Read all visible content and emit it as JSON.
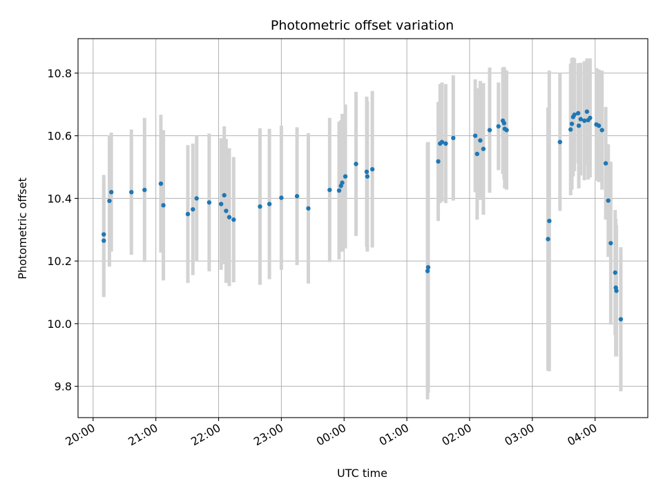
{
  "chart_data": {
    "type": "scatter",
    "title": "Photometric offset variation",
    "xlabel": "UTC time",
    "ylabel": "Photometric offset",
    "x_unit": "UTC time (hours after 20:00)",
    "xlim": [
      -0.24,
      8.84
    ],
    "ylim": [
      9.7,
      10.91
    ],
    "x_ticks": [
      {
        "value": 0,
        "label": "20:00"
      },
      {
        "value": 1,
        "label": "21:00"
      },
      {
        "value": 2,
        "label": "22:00"
      },
      {
        "value": 3,
        "label": "23:00"
      },
      {
        "value": 4,
        "label": "00:00"
      },
      {
        "value": 5,
        "label": "01:00"
      },
      {
        "value": 6,
        "label": "02:00"
      },
      {
        "value": 7,
        "label": "03:00"
      },
      {
        "value": 8,
        "label": "04:00"
      }
    ],
    "y_ticks": [
      {
        "value": 9.8,
        "label": "9.8"
      },
      {
        "value": 10.0,
        "label": "10.0"
      },
      {
        "value": 10.2,
        "label": "10.2"
      },
      {
        "value": 10.4,
        "label": "10.4"
      },
      {
        "value": 10.6,
        "label": "10.6"
      },
      {
        "value": 10.8,
        "label": "10.8"
      }
    ],
    "grid": true,
    "colors": {
      "point": "#1f77b4",
      "errorbar": "#d3d3d3",
      "grid": "#b0b0b0"
    },
    "series": [
      {
        "x": [
          0.17,
          0.17,
          0.26,
          0.29,
          0.61,
          0.82,
          1.08,
          1.12,
          1.51,
          1.59,
          1.65,
          1.85,
          2.04,
          2.09,
          2.12,
          2.17,
          2.24,
          2.66,
          2.81,
          3.0,
          3.25,
          3.43,
          3.77,
          3.92,
          3.95,
          3.97,
          4.02,
          4.19,
          4.36,
          4.37,
          4.45,
          5.33,
          5.34,
          5.5,
          5.53,
          5.56,
          5.62,
          5.74,
          6.09,
          6.12,
          6.17,
          6.22,
          6.32,
          6.46,
          6.53,
          6.55,
          6.56,
          6.59,
          7.25,
          7.27,
          7.44,
          7.61,
          7.63,
          7.65,
          7.67,
          7.73,
          7.74,
          7.77,
          7.83,
          7.87,
          7.89,
          7.92,
          8.02,
          8.06,
          8.11,
          8.17,
          8.21,
          8.25,
          8.32,
          8.33,
          8.34,
          8.41
        ],
        "y": [
          10.265,
          10.285,
          10.392,
          10.42,
          10.42,
          10.427,
          10.447,
          10.378,
          10.35,
          10.365,
          10.4,
          10.387,
          10.382,
          10.41,
          10.36,
          10.34,
          10.332,
          10.374,
          10.382,
          10.402,
          10.407,
          10.368,
          10.427,
          10.425,
          10.44,
          10.45,
          10.47,
          10.51,
          10.485,
          10.47,
          10.493,
          10.168,
          10.18,
          10.518,
          10.575,
          10.58,
          10.575,
          10.593,
          10.6,
          10.542,
          10.585,
          10.558,
          10.618,
          10.63,
          10.648,
          10.64,
          10.622,
          10.618,
          10.27,
          10.328,
          10.58,
          10.62,
          10.638,
          10.66,
          10.667,
          10.672,
          10.632,
          10.653,
          10.648,
          10.677,
          10.65,
          10.657,
          10.636,
          10.632,
          10.618,
          10.512,
          10.393,
          10.257,
          10.163,
          10.115,
          10.105,
          10.014
        ],
        "err": [
          0.18,
          0.19,
          0.21,
          0.19,
          0.2,
          0.23,
          0.22,
          0.24,
          0.22,
          0.21,
          0.2,
          0.22,
          0.21,
          0.22,
          0.23,
          0.22,
          0.2,
          0.25,
          0.24,
          0.23,
          0.22,
          0.24,
          0.23,
          0.22,
          0.21,
          0.22,
          0.23,
          0.23,
          0.24,
          0.24,
          0.25,
          0.41,
          0.4,
          0.19,
          0.19,
          0.19,
          0.19,
          0.2,
          0.18,
          0.21,
          0.19,
          0.21,
          0.2,
          0.14,
          0.17,
          0.18,
          0.19,
          0.19,
          0.42,
          0.48,
          0.22,
          0.21,
          0.21,
          0.19,
          0.18,
          0.16,
          0.2,
          0.18,
          0.19,
          0.17,
          0.19,
          0.19,
          0.18,
          0.18,
          0.19,
          0.18,
          0.18,
          0.26,
          0.2,
          0.22,
          0.21,
          0.23
        ]
      }
    ]
  }
}
